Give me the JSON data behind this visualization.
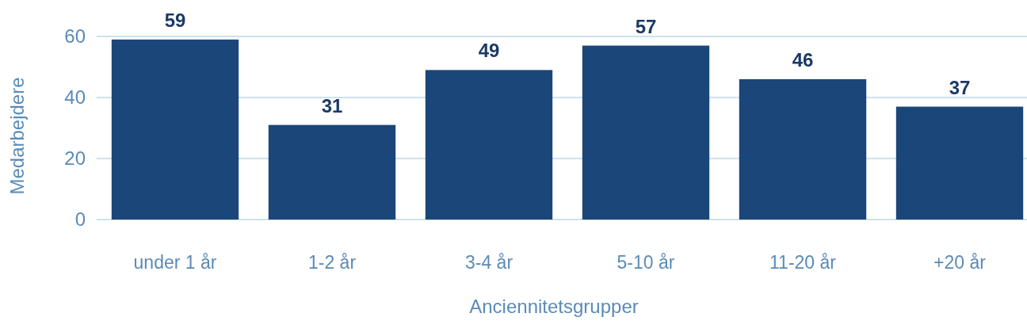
{
  "chart_data": {
    "type": "bar",
    "xlabel": "Anciennitetsgrupper",
    "ylabel": "Medarbejdere",
    "categories": [
      "under 1 år",
      "1-2 år",
      "3-4 år",
      "5-10 år",
      "11-20 år",
      "+20 år"
    ],
    "values": [
      59,
      31,
      49,
      57,
      46,
      37
    ],
    "color": "#1b4679",
    "ylim": [
      0,
      60
    ],
    "yticks": [
      0,
      20,
      40,
      60
    ],
    "grid": "y",
    "data_labels": true
  }
}
